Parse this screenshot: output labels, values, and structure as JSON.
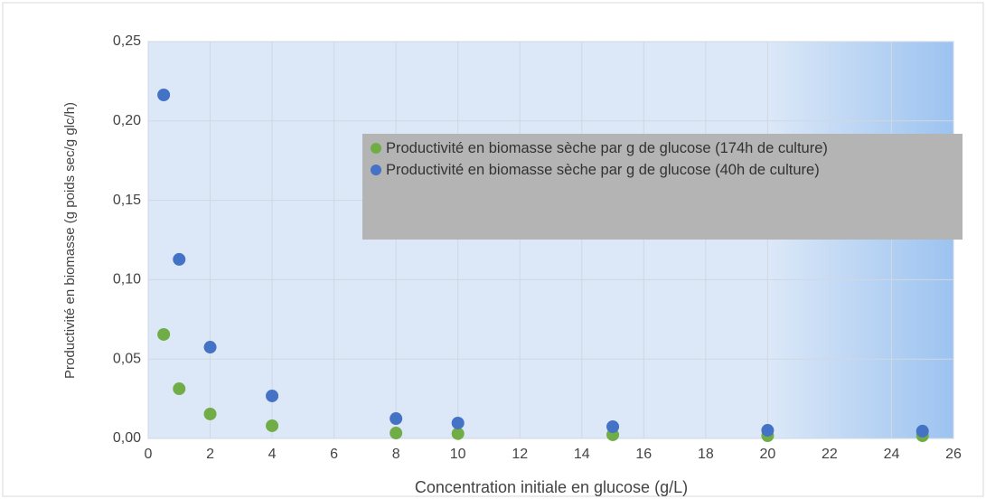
{
  "chart_data": {
    "type": "scatter",
    "xlabel": "Concentration initiale en glucose (g/L)",
    "ylabel": "Productivité en biomasse (g poids sec/g glc/h)",
    "series": [
      {
        "name": "Productivité en biomasse sèche par g de glucose (174h de culture)",
        "color": "#70ad47",
        "x": [
          0.5,
          1,
          2,
          4,
          8,
          10,
          15,
          20,
          25
        ],
        "values": [
          0.0655,
          0.0313,
          0.0154,
          0.008,
          0.0034,
          0.003,
          0.0023,
          0.0017,
          0.0017
        ]
      },
      {
        "name": "Productivité en biomasse sèche par g de glucose (40h de culture)",
        "color": "#4472c4",
        "x": [
          0.5,
          1,
          2,
          4,
          8,
          10,
          15,
          20,
          25
        ],
        "values": [
          0.2164,
          0.1128,
          0.0575,
          0.0268,
          0.0125,
          0.0097,
          0.0074,
          0.0051,
          0.0046
        ]
      }
    ],
    "xlim": [
      0,
      26
    ],
    "xticks": [
      0,
      2,
      4,
      6,
      8,
      10,
      12,
      14,
      16,
      18,
      20,
      22,
      24,
      26
    ],
    "ylim": [
      0,
      0.25
    ],
    "yticks": [
      {
        "value": 0,
        "label": "0,00"
      },
      {
        "value": 0.05,
        "label": "0,05"
      },
      {
        "value": 0.1,
        "label": "0,10"
      },
      {
        "value": 0.15,
        "label": "0,15"
      },
      {
        "value": 0.2,
        "label": "0,20"
      },
      {
        "value": 0.25,
        "label": "0,25"
      }
    ],
    "grid": true,
    "legend": "upper right"
  }
}
